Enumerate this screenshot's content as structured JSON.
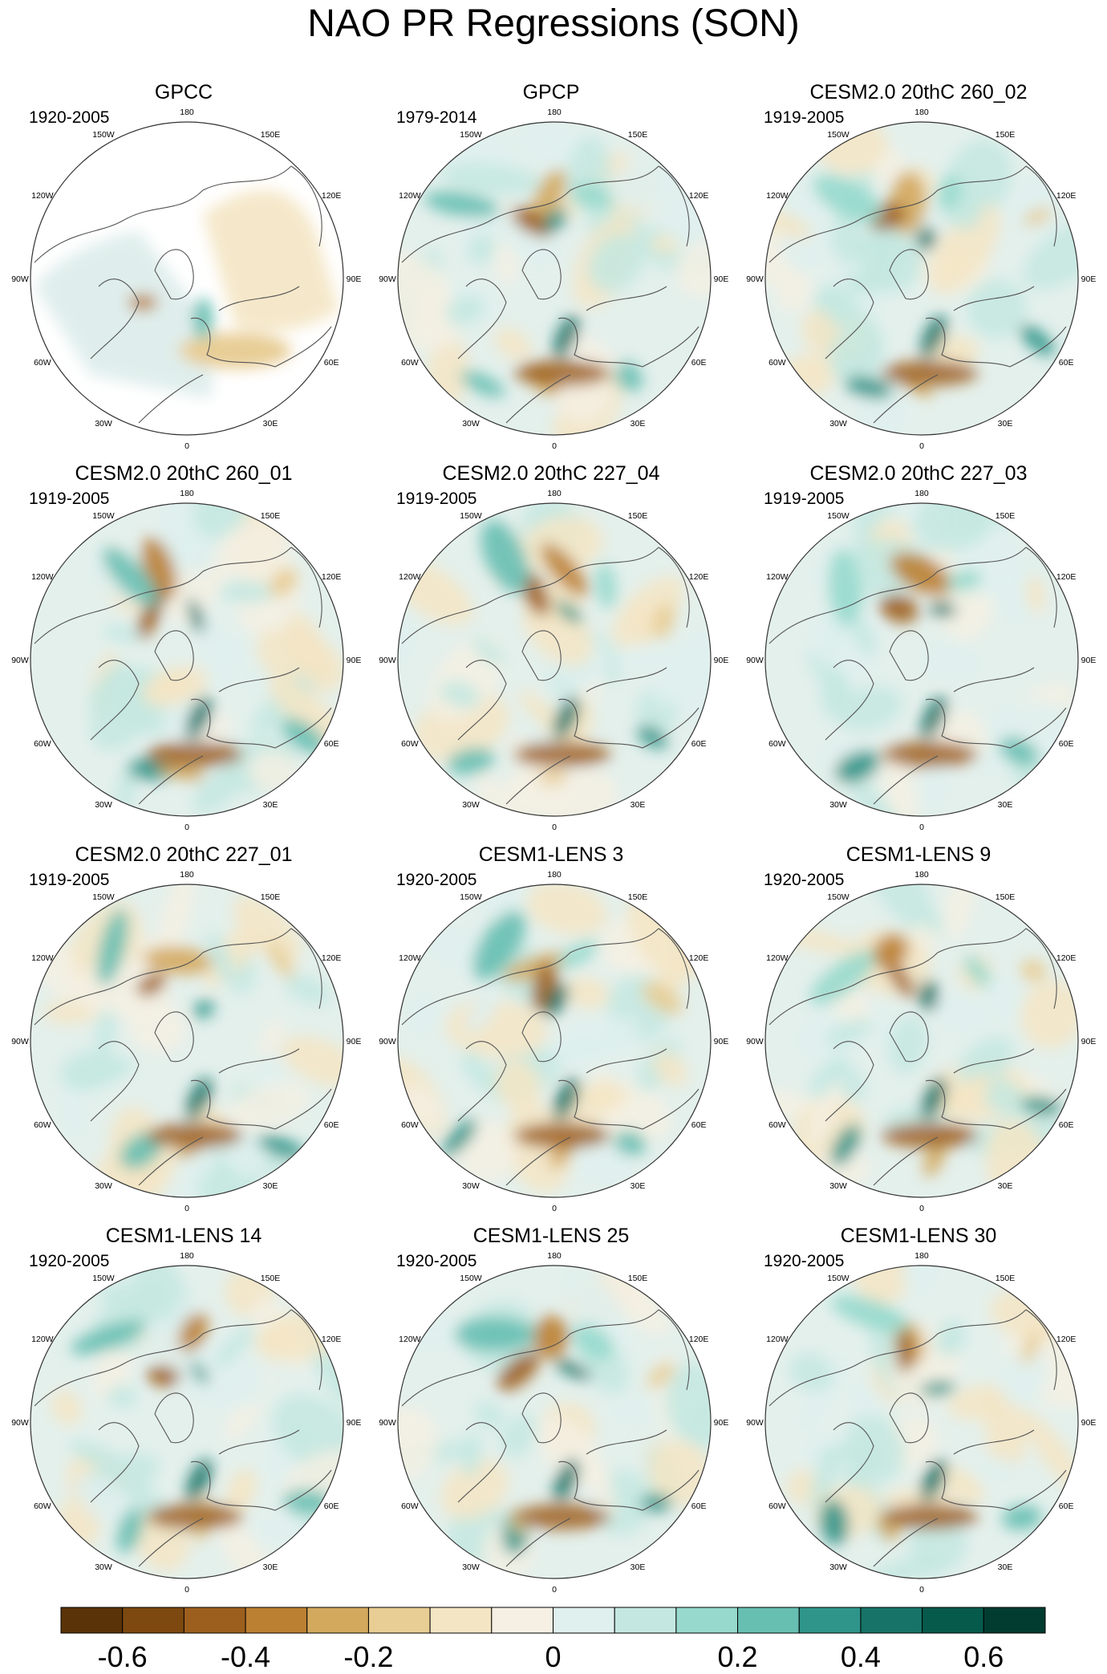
{
  "title": "NAO PR Regressions (SON)",
  "chart_data": {
    "type": "heatmap",
    "projection": "north polar stereographic",
    "grid": "off",
    "panels": [
      {
        "name": "GPCC",
        "period": "1920-2005",
        "land_only": true
      },
      {
        "name": "GPCP",
        "period": "1979-2014",
        "land_only": false
      },
      {
        "name": "CESM2.0 20thC 260_02",
        "period": "1919-2005",
        "land_only": false
      },
      {
        "name": "CESM2.0 20thC 260_01",
        "period": "1919-2005",
        "land_only": false
      },
      {
        "name": "CESM2.0 20thC 227_04",
        "period": "1919-2005",
        "land_only": false
      },
      {
        "name": "CESM2.0 20thC 227_03",
        "period": "1919-2005",
        "land_only": false
      },
      {
        "name": "CESM2.0 20thC 227_01",
        "period": "1919-2005",
        "land_only": false
      },
      {
        "name": "CESM1-LENS 3",
        "period": "1920-2005",
        "land_only": false
      },
      {
        "name": "CESM1-LENS 9",
        "period": "1920-2005",
        "land_only": false
      },
      {
        "name": "CESM1-LENS 14",
        "period": "1920-2005",
        "land_only": false
      },
      {
        "name": "CESM1-LENS 25",
        "period": "1920-2005",
        "land_only": false
      },
      {
        "name": "CESM1-LENS 30",
        "period": "1920-2005",
        "land_only": false
      }
    ],
    "lon_labels": [
      "180",
      "150E",
      "120E",
      "90E",
      "60E",
      "30E",
      "0",
      "30W",
      "60W",
      "90W",
      "120W",
      "150W"
    ],
    "colorbar": {
      "tick_labels": [
        "-0.6",
        "-0.4",
        "-0.2",
        "0",
        "0.2",
        "0.4",
        "0.6"
      ],
      "colors": [
        "#5a3408",
        "#7d4910",
        "#9d5f1e",
        "#bb8032",
        "#d3a95e",
        "#e8cd95",
        "#f4e5c4",
        "#f5f0e3",
        "#dff0ee",
        "#c4e8e1",
        "#97d9cd",
        "#67bfb2",
        "#2f958a",
        "#177367",
        "#065a4c",
        "#023c30"
      ]
    }
  }
}
